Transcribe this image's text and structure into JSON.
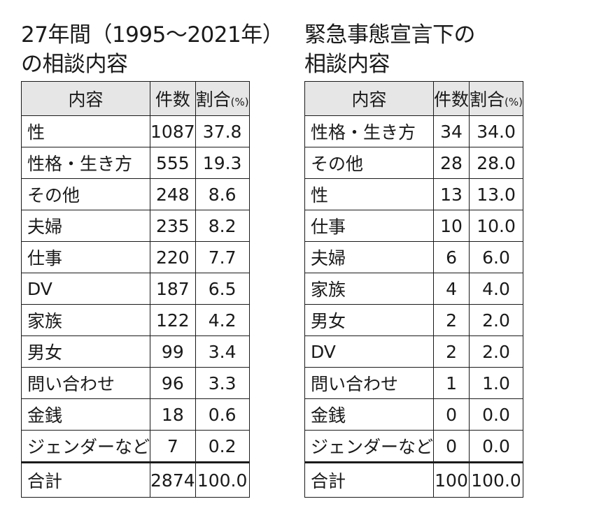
{
  "left": {
    "title_line1": "27年間（1995〜2021年）",
    "title_line2": "の相談内容",
    "headers": {
      "content": "内容",
      "count": "件数",
      "ratio": "割合",
      "ratio_unit": "(%)"
    },
    "rows": [
      {
        "label": "性",
        "count": "1087",
        "pct": "37.8"
      },
      {
        "label": "性格・生き方",
        "count": "555",
        "pct": "19.3"
      },
      {
        "label": "その他",
        "count": "248",
        "pct": "8.6"
      },
      {
        "label": "夫婦",
        "count": "235",
        "pct": "8.2"
      },
      {
        "label": "仕事",
        "count": "220",
        "pct": "7.7"
      },
      {
        "label": "DV",
        "count": "187",
        "pct": "6.5"
      },
      {
        "label": "家族",
        "count": "122",
        "pct": "4.2"
      },
      {
        "label": "男女",
        "count": "99",
        "pct": "3.4"
      },
      {
        "label": "問い合わせ",
        "count": "96",
        "pct": "3.3"
      },
      {
        "label": "金銭",
        "count": "18",
        "pct": "0.6"
      },
      {
        "label": "ジェンダーなど",
        "count": "7",
        "pct": "0.2"
      }
    ],
    "total": {
      "label": "合計",
      "count": "2874",
      "pct": "100.0"
    }
  },
  "right": {
    "title_line1": "緊急事態宣言下の",
    "title_line2": "相談内容",
    "headers": {
      "content": "内容",
      "count": "件数",
      "ratio": "割合",
      "ratio_unit": "(%)"
    },
    "rows": [
      {
        "label": "性格・生き方",
        "count": "34",
        "pct": "34.0"
      },
      {
        "label": "その他",
        "count": "28",
        "pct": "28.0"
      },
      {
        "label": "性",
        "count": "13",
        "pct": "13.0"
      },
      {
        "label": "仕事",
        "count": "10",
        "pct": "10.0"
      },
      {
        "label": "夫婦",
        "count": "6",
        "pct": "6.0"
      },
      {
        "label": "家族",
        "count": "4",
        "pct": "4.0"
      },
      {
        "label": "男女",
        "count": "2",
        "pct": "2.0"
      },
      {
        "label": "DV",
        "count": "2",
        "pct": "2.0"
      },
      {
        "label": "問い合わせ",
        "count": "1",
        "pct": "1.0"
      },
      {
        "label": "金銭",
        "count": "0",
        "pct": "0.0"
      },
      {
        "label": "ジェンダーなど",
        "count": "0",
        "pct": "0.0"
      }
    ],
    "total": {
      "label": "合計",
      "count": "100",
      "pct": "100.0"
    }
  }
}
